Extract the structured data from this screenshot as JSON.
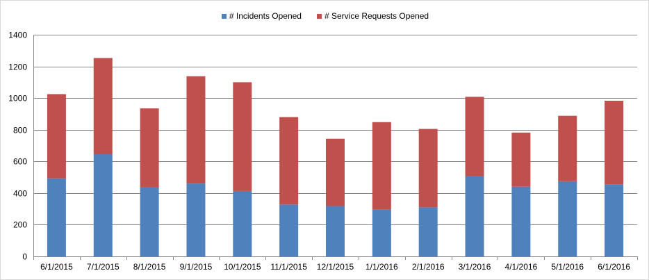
{
  "chart_data": {
    "type": "bar",
    "stacked": true,
    "title": "",
    "xlabel": "",
    "ylabel": "",
    "ylim": [
      0,
      1400
    ],
    "ytick_step": 200,
    "grid": true,
    "legend_position": "top",
    "categories": [
      "6/1/2015",
      "7/1/2015",
      "8/1/2015",
      "9/1/2015",
      "10/1/2015",
      "11/1/2015",
      "12/1/2015",
      "1/1/2016",
      "2/1/2016",
      "3/1/2016",
      "4/1/2016",
      "5/1/2016",
      "6/1/2016"
    ],
    "series": [
      {
        "name": "# Incidents Opened",
        "color": "#4f81bd",
        "values": [
          493,
          645,
          435,
          460,
          413,
          328,
          318,
          295,
          310,
          505,
          440,
          475,
          455
        ]
      },
      {
        "name": "# Service Requests Opened",
        "color": "#c0504d",
        "values": [
          532,
          608,
          500,
          678,
          687,
          552,
          425,
          553,
          495,
          503,
          342,
          413,
          528
        ]
      }
    ]
  }
}
